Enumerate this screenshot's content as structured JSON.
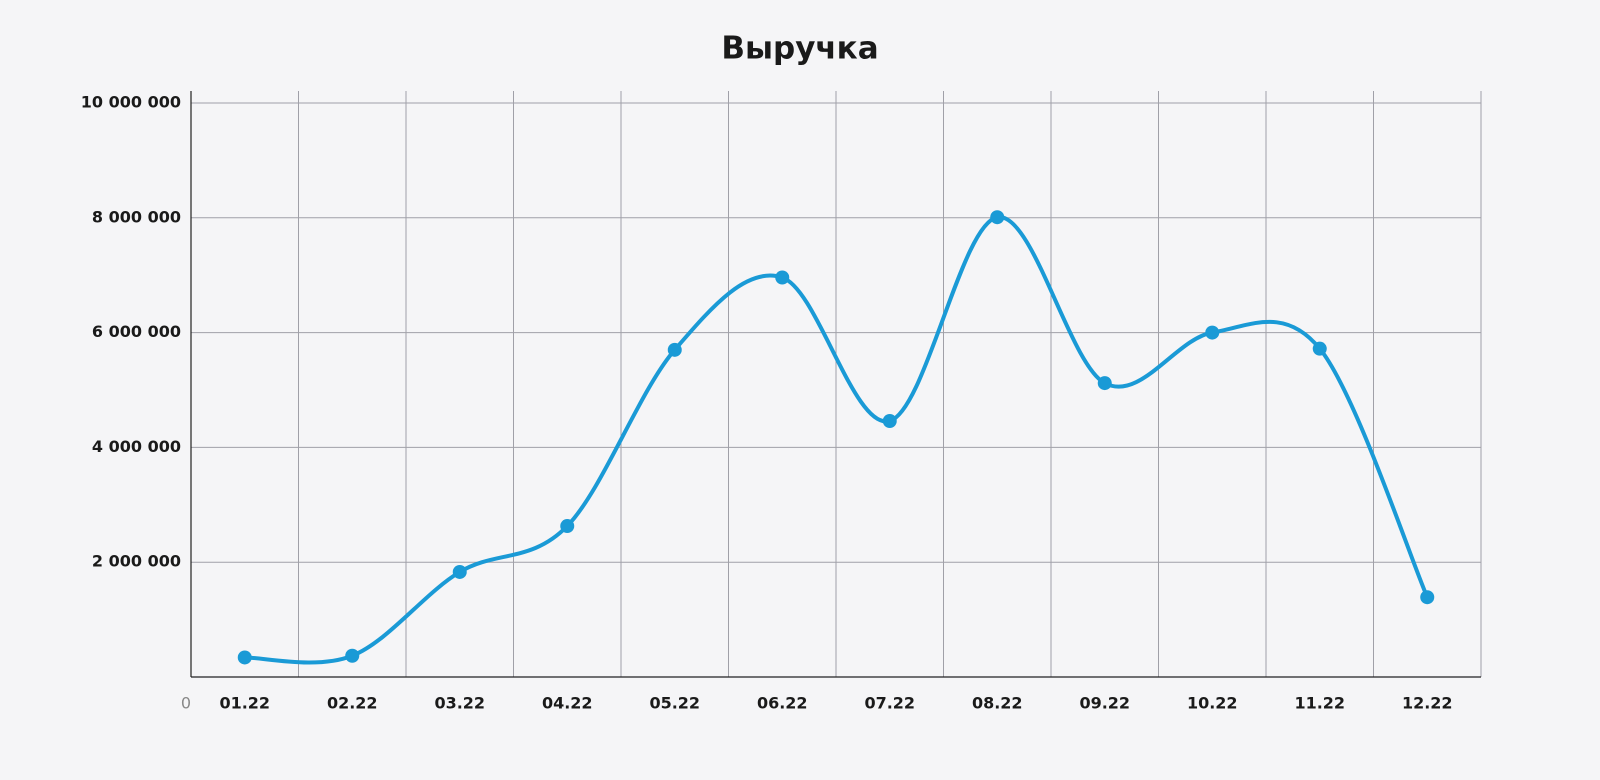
{
  "chart_data": {
    "type": "line",
    "title": "Выручка",
    "categories": [
      "01.22",
      "02.22",
      "03.22",
      "04.22",
      "05.22",
      "06.22",
      "07.22",
      "08.22",
      "09.22",
      "10.22",
      "11.22",
      "12.22"
    ],
    "series": [
      {
        "name": "Выручка",
        "color": "#1a9ad6",
        "values": [
          340000,
          370000,
          1830000,
          2630000,
          5700000,
          6960000,
          4460000,
          8010000,
          5120000,
          6000000,
          5720000,
          1390000
        ]
      }
    ],
    "ylim": [
      0,
      10000000
    ],
    "yticks": [
      0,
      {
        "value": 2000000,
        "label": "2 000 000"
      },
      {
        "value": 4000000,
        "label": "4 000 000"
      },
      {
        "value": 6000000,
        "label": "6 000 000"
      },
      {
        "value": 8000000,
        "label": "8 000 000"
      },
      {
        "value": 10000000,
        "label": "10 000 000"
      }
    ],
    "grid": true
  }
}
